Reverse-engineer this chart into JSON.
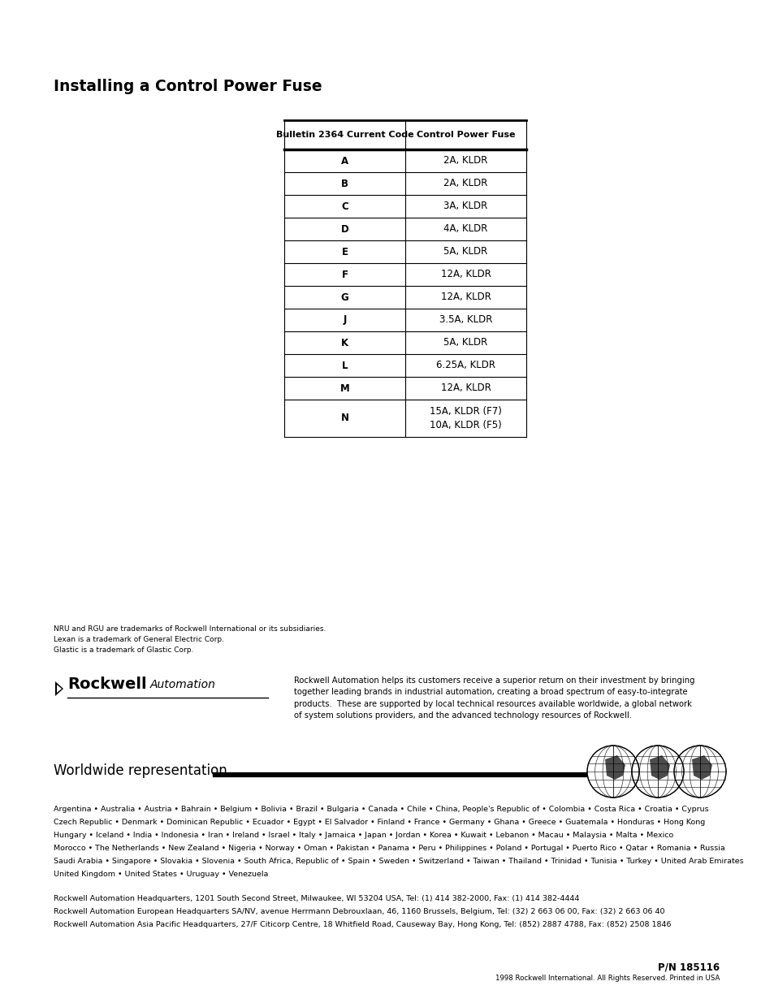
{
  "title": "Installing a Control Power Fuse",
  "table_headers": [
    "Bulletin 2364 Current Code",
    "Control Power Fuse"
  ],
  "table_rows": [
    [
      "A",
      "2A, KLDR"
    ],
    [
      "B",
      "2A, KLDR"
    ],
    [
      "C",
      "3A, KLDR"
    ],
    [
      "D",
      "4A, KLDR"
    ],
    [
      "E",
      "5A, KLDR"
    ],
    [
      "F",
      "12A, KLDR"
    ],
    [
      "G",
      "12A, KLDR"
    ],
    [
      "J",
      "3.5A, KLDR"
    ],
    [
      "K",
      "5A, KLDR"
    ],
    [
      "L",
      "6.25A, KLDR"
    ],
    [
      "M",
      "12A, KLDR"
    ],
    [
      "N",
      "15A, KLDR (F7)\n10A, KLDR (F5)"
    ]
  ],
  "trademark_text": "NRU and RGU are trademarks of Rockwell International or its subsidiaries.\nLexan is a trademark of General Electric Corp.\nGlastic is a trademark of Glastic Corp.",
  "rockwell_desc": "Rockwell Automation helps its customers receive a superior return on their investment by bringing\ntogether leading brands in industrial automation, creating a broad spectrum of easy-to-integrate\nproducts.  These are supported by local technical resources available worldwide, a global network\nof system solutions providers, and the advanced technology resources of Rockwell.",
  "worldwide_title": "Worldwide representation.",
  "countries_lines": [
    "Argentina • Australia • Austria • Bahrain • Belgium • Bolivia • Brazil • Bulgaria • Canada • Chile • China, People's Republic of • Colombia • Costa Rica • Croatia • Cyprus",
    "Czech Republic • Denmark • Dominican Republic • Ecuador • Egypt • El Salvador • Finland • France • Germany • Ghana • Greece • Guatemala • Honduras • Hong Kong",
    "Hungary • Iceland • India • Indonesia • Iran • Ireland • Israel • Italy • Jamaica • Japan • Jordan • Korea • Kuwait • Lebanon • Macau • Malaysia • Malta • Mexico",
    "Morocco • The Netherlands • New Zealand • Nigeria • Norway • Oman • Pakistan • Panama • Peru • Philippines • Poland • Portugal • Puerto Rico • Qatar • Romania • Russia",
    "Saudi Arabia • Singapore • Slovakia • Slovenia • South Africa, Republic of • Spain • Sweden • Switzerland • Taiwan • Thailand • Trinidad • Tunisia • Turkey • United Arab Emirates",
    "United Kingdom • United States • Uruguay • Venezuela"
  ],
  "hq_lines": [
    "Rockwell Automation Headquarters, 1201 South Second Street, Milwaukee, WI 53204 USA, Tel: (1) 414 382-2000, Fax: (1) 414 382-4444",
    "Rockwell Automation European Headquarters SA/NV, avenue Herrmann Debrouxlaan, 46, 1160 Brussels, Belgium, Tel: (32) 2 663 06 00, Fax: (32) 2 663 06 40",
    "Rockwell Automation Asia Pacific Headquarters, 27/F Citicorp Centre, 18 Whitfield Road, Causeway Bay, Hong Kong, Tel: (852) 2887 4788, Fax: (852) 2508 1846"
  ],
  "pn_text": "P/N 185116",
  "copyright_text": "1998 Rockwell International. All Rights Reserved. Printed in USA",
  "bg_color": "#ffffff",
  "text_color": "#000000"
}
